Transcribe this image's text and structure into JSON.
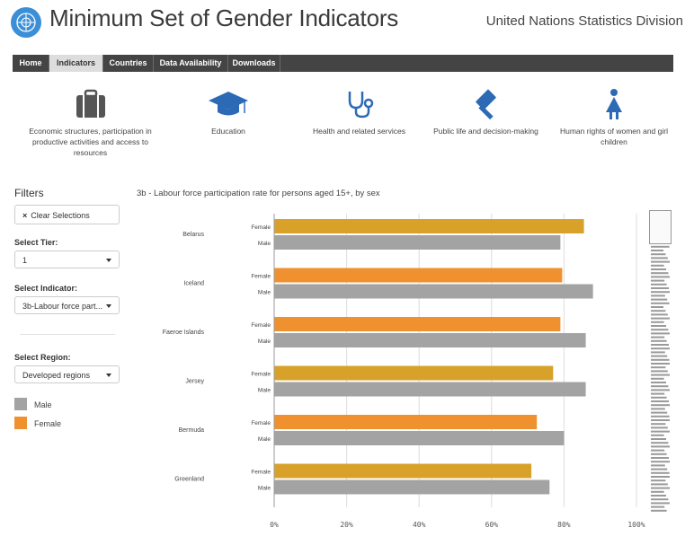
{
  "header": {
    "title": "Minimum Set of Gender Indicators",
    "org": "United Nations Statistics Division"
  },
  "nav": [
    {
      "label": "Home",
      "active": false
    },
    {
      "label": "Indicators",
      "active": true
    },
    {
      "label": "Countries",
      "active": false
    },
    {
      "label": "Data Availability",
      "active": false
    },
    {
      "label": "Downloads",
      "active": false
    }
  ],
  "categories": [
    {
      "label": "Economic structures, participation in productive activities and access to resources",
      "icon": "briefcase-icon"
    },
    {
      "label": "Education",
      "icon": "graduation-cap-icon"
    },
    {
      "label": "Health and related services",
      "icon": "stethoscope-icon"
    },
    {
      "label": "Public life and decision-making",
      "icon": "gavel-icon"
    },
    {
      "label": "Human rights of women and girl children",
      "icon": "woman-icon"
    }
  ],
  "filters": {
    "title": "Filters",
    "clear_label": "Clear Selections",
    "tier_label": "Select Tier:",
    "tier_value": "1",
    "indicator_label": "Select Indicator:",
    "indicator_value": "3b-Labour force part...",
    "region_label": "Select Region:",
    "region_value": "Developed regions"
  },
  "legend": [
    {
      "label": "Male",
      "color": "#a3a3a3"
    },
    {
      "label": "Female",
      "color": "#f0912f"
    }
  ],
  "colors": {
    "male": "#a3a3a3",
    "female": "#f0912f",
    "female_highlight": "#d8a22a",
    "nav_bg": "#444444"
  },
  "chart_data": {
    "type": "bar",
    "orientation": "horizontal",
    "title": "3b - Labour force participation rate for persons aged 15+, by sex",
    "categories": [
      "Belarus",
      "Iceland",
      "Faeroe Islands",
      "Jersey",
      "Bermuda",
      "Greenland"
    ],
    "series": [
      {
        "name": "Female",
        "values": [
          85.5,
          79.5,
          79,
          77,
          72.5,
          71
        ]
      },
      {
        "name": "Male",
        "values": [
          79,
          88,
          86,
          86,
          80,
          76
        ]
      }
    ],
    "series_labels": [
      "Female",
      "Male"
    ],
    "xlim": [
      0,
      100
    ],
    "xticks": [
      "0%",
      "20%",
      "40%",
      "60%",
      "80%",
      "100%"
    ],
    "grid": true
  }
}
